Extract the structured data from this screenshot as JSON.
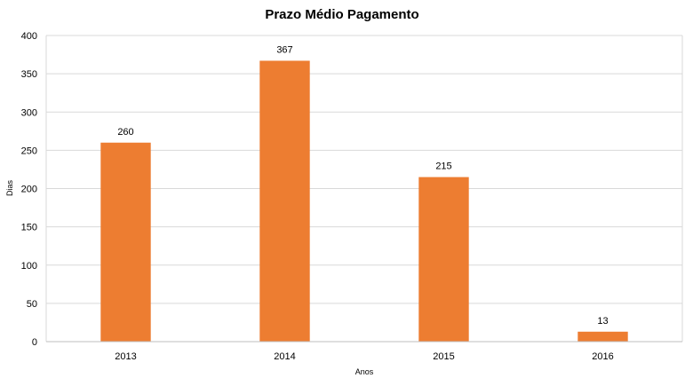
{
  "chart_data": {
    "type": "bar",
    "title": "Prazo Médio Pagamento",
    "xlabel": "Anos",
    "ylabel": "Dias",
    "categories": [
      "2013",
      "2014",
      "2015",
      "2016"
    ],
    "values": [
      260,
      367,
      215,
      13
    ],
    "ylim": [
      0,
      400
    ],
    "yticks": [
      0,
      50,
      100,
      150,
      200,
      250,
      300,
      350,
      400
    ],
    "grid": true,
    "legend": "none",
    "data_labels": true,
    "bar_color": "#ED7D31",
    "grid_color": "#D9D9D9"
  }
}
